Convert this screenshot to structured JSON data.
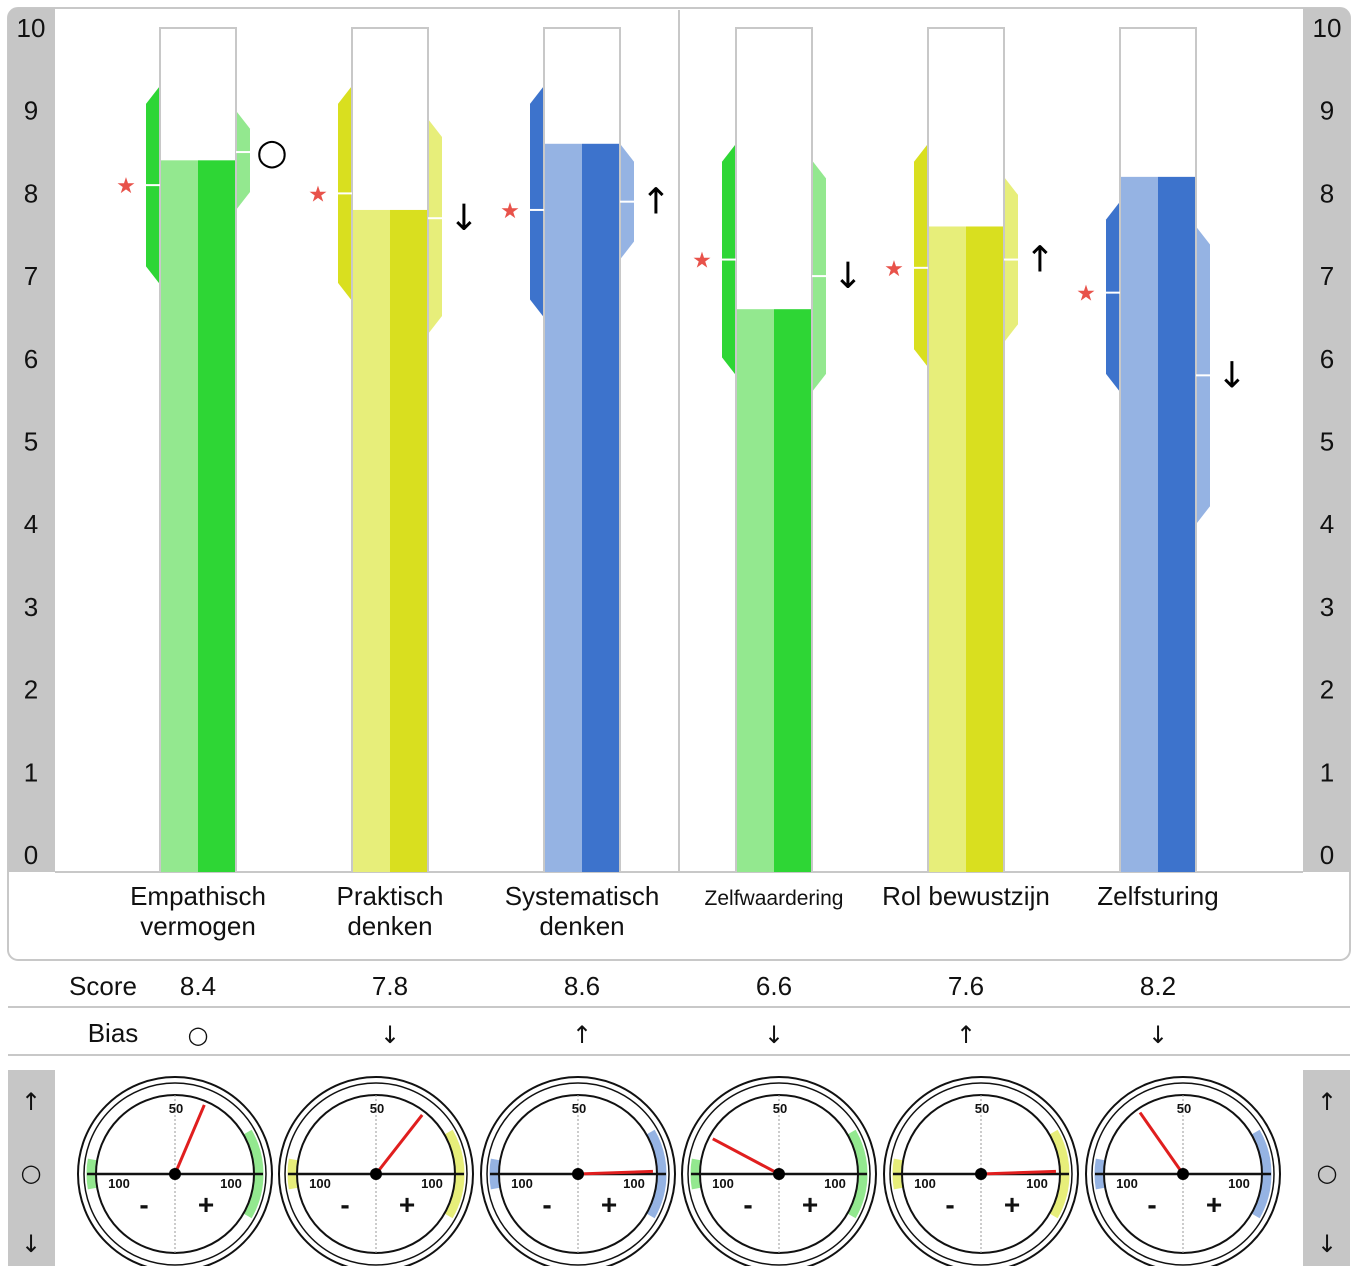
{
  "chart_data": {
    "type": "bar",
    "ylim": [
      0,
      10
    ],
    "y_ticks": [
      "0",
      "1",
      "2",
      "3",
      "4",
      "5",
      "6",
      "7",
      "8",
      "9",
      "10"
    ],
    "categories": [
      {
        "label_lines": [
          "Empathisch",
          "vermogen"
        ],
        "score": 8.4,
        "score_label": "8.4",
        "bias": "○",
        "color": "#2ed635",
        "light": "#93e88f",
        "left_range": [
          6.9,
          9.3
        ],
        "left_marker": 8.1,
        "right_range": [
          7.8,
          9.0
        ],
        "right_marker": 8.5,
        "gauge_angle": 23
      },
      {
        "label_lines": [
          "Praktisch",
          "denken"
        ],
        "score": 7.8,
        "score_label": "7.8",
        "bias": "↓",
        "color": "#d9df1f",
        "light": "#e7ee7a",
        "left_range": [
          6.7,
          9.3
        ],
        "left_marker": 8.0,
        "right_range": [
          6.3,
          8.9
        ],
        "right_marker": 7.7,
        "gauge_angle": 38
      },
      {
        "label_lines": [
          "Systematisch",
          "denken"
        ],
        "score": 8.6,
        "score_label": "8.6",
        "bias": "↑",
        "color": "#3d73cc",
        "light": "#95b3e3",
        "left_range": [
          6.5,
          9.3
        ],
        "left_marker": 7.8,
        "right_range": [
          7.2,
          8.6
        ],
        "right_marker": 7.9,
        "gauge_angle": 88
      },
      {
        "label_lines": [
          "Zelfwaardering"
        ],
        "small_label": true,
        "score": 6.6,
        "score_label": "6.6",
        "bias": "↓",
        "color": "#2ed635",
        "light": "#93e88f",
        "left_range": [
          5.8,
          8.6
        ],
        "left_marker": 7.2,
        "right_range": [
          5.6,
          8.4
        ],
        "right_marker": 7.0,
        "gauge_angle": -62
      },
      {
        "label_lines": [
          "Rol bewustzijn"
        ],
        "score": 7.6,
        "score_label": "7.6",
        "bias": "↑",
        "color": "#d9df1f",
        "light": "#e7ee7a",
        "left_range": [
          5.9,
          8.6
        ],
        "left_marker": 7.1,
        "right_range": [
          6.2,
          8.2
        ],
        "right_marker": 7.2,
        "gauge_angle": 88
      },
      {
        "label_lines": [
          "Zelfsturing"
        ],
        "score": 8.2,
        "score_label": "8.2",
        "bias": "↓",
        "color": "#3d73cc",
        "light": "#95b3e3",
        "left_range": [
          5.6,
          7.9
        ],
        "left_marker": 6.8,
        "right_range": [
          4.0,
          7.6
        ],
        "right_marker": 5.8,
        "gauge_angle": -35
      }
    ],
    "table": {
      "score_header": "Score",
      "bias_header": "Bias"
    },
    "gauge": {
      "top_label": "50",
      "left_label": "100",
      "right_label": "100",
      "minus": "-",
      "plus": "+"
    },
    "side_legend": [
      "↑",
      "○",
      "↓"
    ]
  }
}
